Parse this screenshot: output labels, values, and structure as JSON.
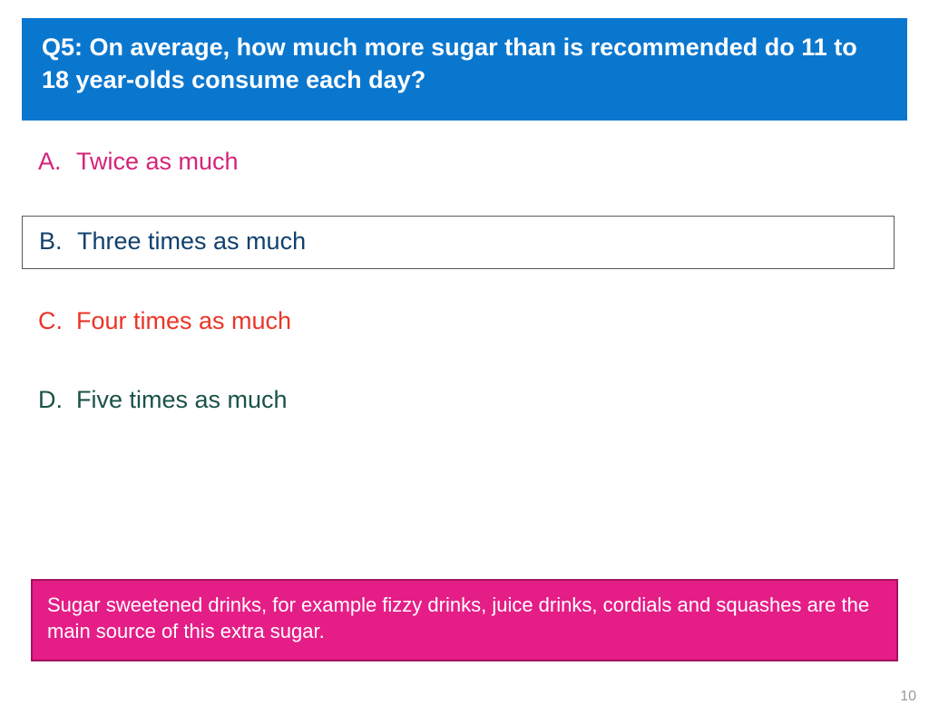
{
  "colors": {
    "header_bg": "#0a77cf",
    "header_text": "#ffffff",
    "option_a": "#d6237a",
    "option_b": "#11406d",
    "option_c": "#eb3427",
    "option_d": "#195246",
    "info_bg": "#e51d87",
    "info_border": "#a3125f",
    "info_text": "#ffffff",
    "page_background": "#ffffff"
  },
  "typography": {
    "header_fontsize": 27,
    "option_fontsize": 27,
    "info_fontsize": 22,
    "pagenum_fontsize": 16,
    "header_fontweight": "bold"
  },
  "question": {
    "text": "Q5: On average, how much more sugar than is recommended do 11 to 18 year-olds consume each day?"
  },
  "options": [
    {
      "letter": "A.",
      "text": "Twice as much",
      "color_key": "option_a",
      "boxed": false
    },
    {
      "letter": "B.",
      "text": "Three times as much",
      "color_key": "option_b",
      "boxed": true
    },
    {
      "letter": "C.",
      "text": "Four times as much",
      "color_key": "option_c",
      "boxed": false
    },
    {
      "letter": "D.",
      "text": "Five times as much",
      "color_key": "option_d",
      "boxed": false
    }
  ],
  "info": {
    "text": "Sugar sweetened drinks, for example fizzy drinks, juice drinks, cordials and squashes are the main source of this extra sugar."
  },
  "page_number": "10"
}
